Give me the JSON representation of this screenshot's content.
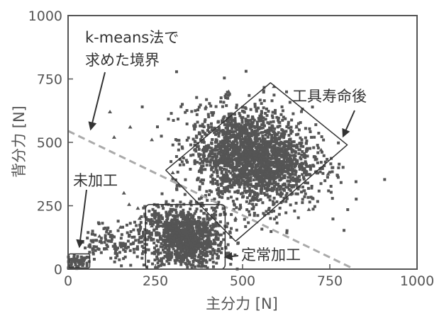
{
  "chart_data": {
    "type": "scatter",
    "title": "",
    "xlabel": "主分力 [N]",
    "ylabel": "背分力 [N]",
    "xlim": [
      0,
      1000
    ],
    "ylim": [
      0,
      1000
    ],
    "xticks": [
      "0",
      "250",
      "500",
      "750",
      "1000"
    ],
    "yticks": [
      "0",
      "250",
      "500",
      "750",
      "1000"
    ],
    "grid": false,
    "legend": "none",
    "marker_color": "#555555",
    "boundary": {
      "label": "k-means法で求めた境界",
      "label_line1": "k-means法で",
      "label_line2": "求めた境界",
      "points": [
        [
          0,
          545
        ],
        [
          820,
          0
        ]
      ],
      "style": "dashed",
      "color": "#aaaaaa"
    },
    "clusters": [
      {
        "label": "未加工",
        "box": [
          [
            2,
            5
          ],
          [
            62,
            60
          ]
        ],
        "center": [
          25,
          25
        ],
        "spread": [
          20,
          15
        ],
        "count": 70
      },
      {
        "label": "定常加工",
        "box": [
          [
            222,
            0
          ],
          [
            450,
            255
          ]
        ],
        "center": [
          335,
          120
        ],
        "spread": [
          55,
          60
        ],
        "count": 1100
      },
      {
        "label": "工具寿命後",
        "box_corners": [
          [
            580,
            735
          ],
          [
            800,
            490
          ],
          [
            480,
            110
          ],
          [
            280,
            390
          ]
        ],
        "center": [
          530,
          440
        ],
        "spread": [
          85,
          95
        ],
        "count": 2200
      }
    ],
    "annotations": [
      {
        "text": "未加工",
        "at": [
          40,
          360
        ]
      },
      {
        "text": "定常加工",
        "at": [
          560,
          30
        ]
      },
      {
        "text": "工具寿命後",
        "at": [
          700,
          650
        ]
      }
    ],
    "scatter_points": [
      [
        120,
        620
      ],
      [
        178,
        560
      ],
      [
        132,
        520
      ],
      [
        395,
        640
      ],
      [
        460,
        700
      ],
      [
        500,
        460
      ],
      [
        285,
        150
      ],
      [
        420,
        110
      ],
      [
        160,
        300
      ],
      [
        90,
        130
      ],
      [
        60,
        90
      ],
      [
        150,
        165
      ],
      [
        200,
        240
      ],
      [
        240,
        170
      ],
      [
        655,
        560
      ],
      [
        725,
        470
      ],
      [
        745,
        375
      ],
      [
        690,
        235
      ],
      [
        520,
        260
      ],
      [
        480,
        200
      ],
      [
        440,
        330
      ],
      [
        380,
        280
      ],
      [
        300,
        380
      ],
      [
        240,
        510
      ],
      [
        70,
        110
      ],
      [
        110,
        80
      ],
      [
        175,
        255
      ],
      [
        205,
        200
      ],
      [
        590,
        720
      ]
    ]
  }
}
